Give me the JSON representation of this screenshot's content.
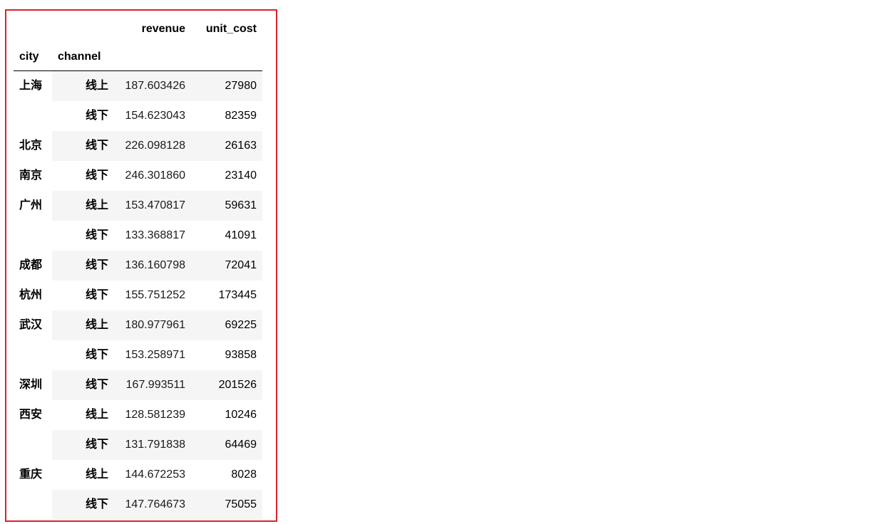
{
  "table": {
    "column_headers": [
      "revenue",
      "unit_cost"
    ],
    "index_names": [
      "city",
      "channel"
    ],
    "groups": [
      {
        "city": "上海",
        "rows": [
          {
            "channel": "线上",
            "revenue": "187.603426",
            "unit_cost": "27980"
          },
          {
            "channel": "线下",
            "revenue": "154.623043",
            "unit_cost": "82359"
          }
        ]
      },
      {
        "city": "北京",
        "rows": [
          {
            "channel": "线下",
            "revenue": "226.098128",
            "unit_cost": "26163"
          }
        ]
      },
      {
        "city": "南京",
        "rows": [
          {
            "channel": "线下",
            "revenue": "246.301860",
            "unit_cost": "23140"
          }
        ]
      },
      {
        "city": "广州",
        "rows": [
          {
            "channel": "线上",
            "revenue": "153.470817",
            "unit_cost": "59631"
          },
          {
            "channel": "线下",
            "revenue": "133.368817",
            "unit_cost": "41091"
          }
        ]
      },
      {
        "city": "成都",
        "rows": [
          {
            "channel": "线下",
            "revenue": "136.160798",
            "unit_cost": "72041"
          }
        ]
      },
      {
        "city": "杭州",
        "rows": [
          {
            "channel": "线下",
            "revenue": "155.751252",
            "unit_cost": "173445"
          }
        ]
      },
      {
        "city": "武汉",
        "rows": [
          {
            "channel": "线上",
            "revenue": "180.977961",
            "unit_cost": "69225"
          },
          {
            "channel": "线下",
            "revenue": "153.258971",
            "unit_cost": "93858"
          }
        ]
      },
      {
        "city": "深圳",
        "rows": [
          {
            "channel": "线下",
            "revenue": "167.993511",
            "unit_cost": "201526"
          }
        ]
      },
      {
        "city": "西安",
        "rows": [
          {
            "channel": "线上",
            "revenue": "128.581239",
            "unit_cost": "10246"
          },
          {
            "channel": "线下",
            "revenue": "131.791838",
            "unit_cost": "64469"
          }
        ]
      },
      {
        "city": "重庆",
        "rows": [
          {
            "channel": "线上",
            "revenue": "144.672253",
            "unit_cost": "8028"
          },
          {
            "channel": "线下",
            "revenue": "147.764673",
            "unit_cost": "75055"
          }
        ]
      }
    ]
  },
  "colors": {
    "frame_border": "#d9232d",
    "stripe": "#f5f5f5"
  }
}
